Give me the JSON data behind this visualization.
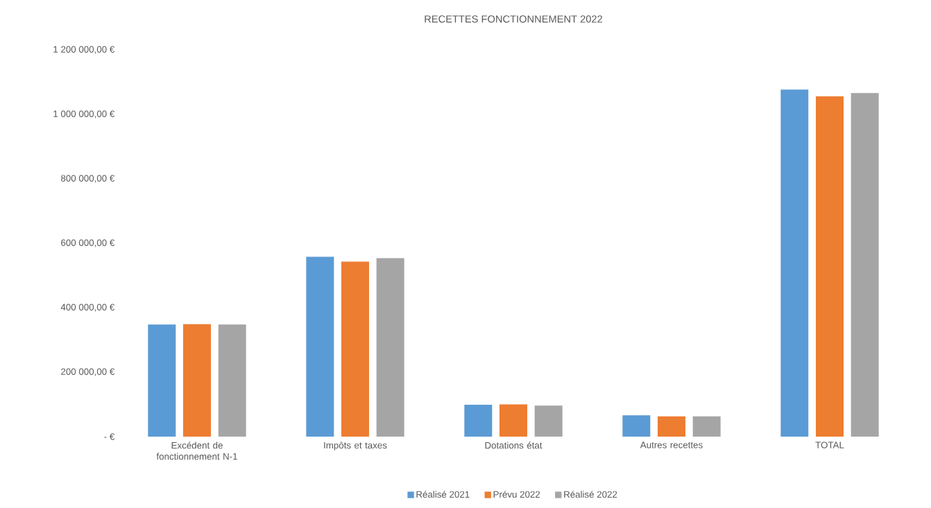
{
  "chart_data": {
    "type": "bar",
    "title": "RECETTES FONCTIONNEMENT 2022",
    "categories": [
      "Excédent de fonctionnement N-1",
      "Impôts et taxes",
      "Dotations état",
      "Autres recettes",
      "TOTAL"
    ],
    "series": [
      {
        "name": "Réalisé 2021",
        "color": "#5b9bd5",
        "values": [
          348000,
          558000,
          99000,
          66000,
          1077000
        ]
      },
      {
        "name": "Prévu 2022",
        "color": "#ed7d31",
        "values": [
          349000,
          543000,
          100000,
          63000,
          1056000
        ]
      },
      {
        "name": "Réalisé 2022",
        "color": "#a5a5a5",
        "values": [
          348000,
          554000,
          96000,
          63000,
          1066000
        ]
      }
    ],
    "ylim": [
      0,
      1200000
    ],
    "yticks": [
      {
        "value": 0,
        "label": "- €"
      },
      {
        "value": 200000,
        "label": "200 000,00 €"
      },
      {
        "value": 400000,
        "label": "400 000,00 €"
      },
      {
        "value": 600000,
        "label": "600 000,00 €"
      },
      {
        "value": 800000,
        "label": "800 000,00 €"
      },
      {
        "value": 1000000,
        "label": "1 000 000,00 €"
      },
      {
        "value": 1200000,
        "label": "1 200 000,00 €"
      }
    ],
    "grid": false,
    "legend": "bottom"
  }
}
